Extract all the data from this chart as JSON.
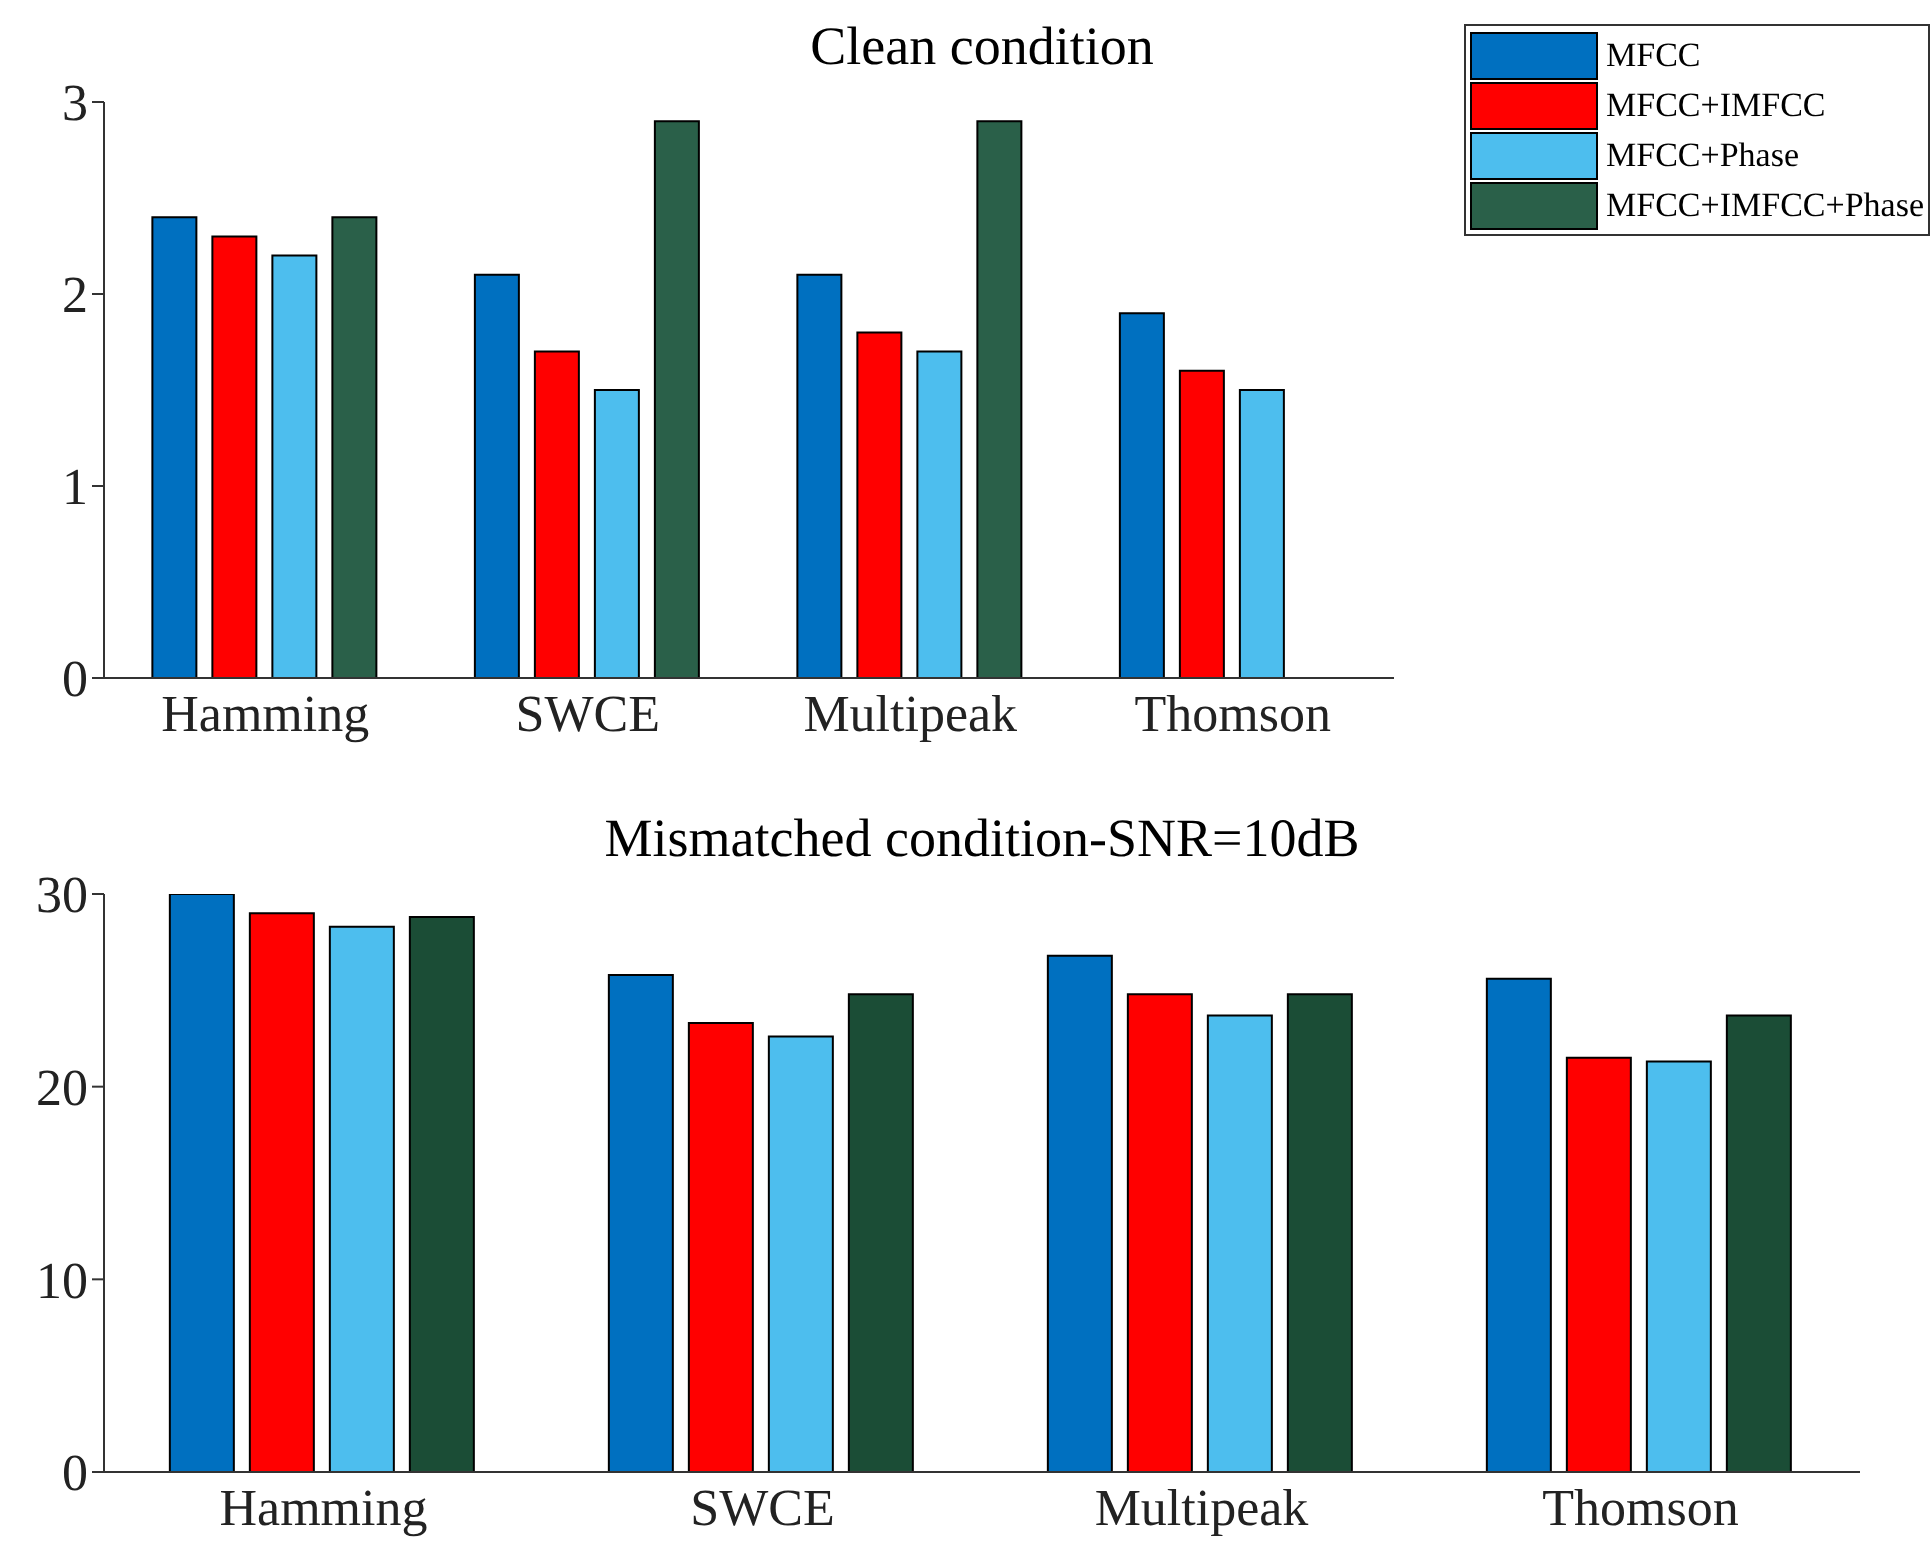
{
  "chart_data": [
    {
      "type": "bar",
      "title": "Clean condition",
      "categories": [
        "Hamming",
        "SWCE",
        "Multipeak",
        "Thomson"
      ],
      "ylim": [
        0,
        3
      ],
      "yticks": [
        0,
        1,
        2,
        3
      ],
      "grid": false,
      "legend": "top right",
      "series": [
        {
          "name": "MFCC",
          "color": "#0070c0",
          "values": [
            2.4,
            2.1,
            2.1,
            1.9
          ]
        },
        {
          "name": "MFCC+IMFCC",
          "color": "#ff0000",
          "values": [
            2.3,
            1.7,
            1.8,
            1.6
          ]
        },
        {
          "name": "MFCC+Phase",
          "color": "#4dbeee",
          "values": [
            2.2,
            1.5,
            1.7,
            1.5
          ]
        },
        {
          "name": "MFCC+IMFCC+Phase",
          "color": "#2a6049",
          "values": [
            2.4,
            2.9,
            2.9,
            null
          ]
        }
      ]
    },
    {
      "type": "bar",
      "title": "Mismatched condition-SNR=10dB",
      "categories": [
        "Hamming",
        "SWCE",
        "Multipeak",
        "Thomson"
      ],
      "ylim": [
        0,
        30
      ],
      "yticks": [
        0,
        10,
        20,
        30
      ],
      "grid": false,
      "legend": false,
      "series": [
        {
          "color": "#0070c0",
          "values": [
            30,
            25.8,
            26.8,
            25.6
          ]
        },
        {
          "color": "#ff0000",
          "values": [
            29,
            23.3,
            24.8,
            21.5
          ]
        },
        {
          "color": "#4dbeee",
          "values": [
            28.3,
            22.6,
            23.7,
            21.3
          ]
        },
        {
          "color": "#1b4d36",
          "values": [
            28.8,
            24.8,
            24.8,
            23.7
          ]
        }
      ]
    }
  ]
}
